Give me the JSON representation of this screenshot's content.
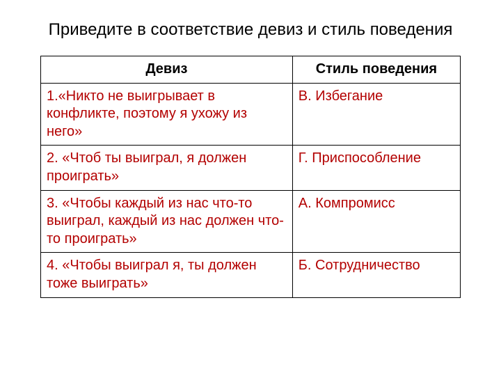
{
  "title": "Приведите в соответствие девиз и стиль поведения",
  "table": {
    "header": {
      "col1": "Девиз",
      "col2": "Стиль поведения"
    },
    "rows": [
      {
        "motto": "1.«Никто не выигрывает в конфликте, поэтому я ухожу из него»",
        "style": "В. Избегание"
      },
      {
        "motto": "2. «Чтоб ты выиграл, я должен проиграть»",
        "style": "Г. Приспособление"
      },
      {
        "motto": "3. «Чтобы каждый из нас что-то выиграл, каждый из нас должен что-то проиграть»",
        "style": "А. Компромисс"
      },
      {
        "motto": "4. «Чтобы выиграл я, ты должен тоже выиграть»",
        "style": "Б. Сотрудничество"
      }
    ],
    "body_text_color": "#b30000",
    "header_text_color": "#000000",
    "border_color": "#000000",
    "background_color": "#ffffff",
    "header_fontsize": 20,
    "body_fontsize": 20,
    "col_widths_pct": [
      60,
      40
    ]
  }
}
